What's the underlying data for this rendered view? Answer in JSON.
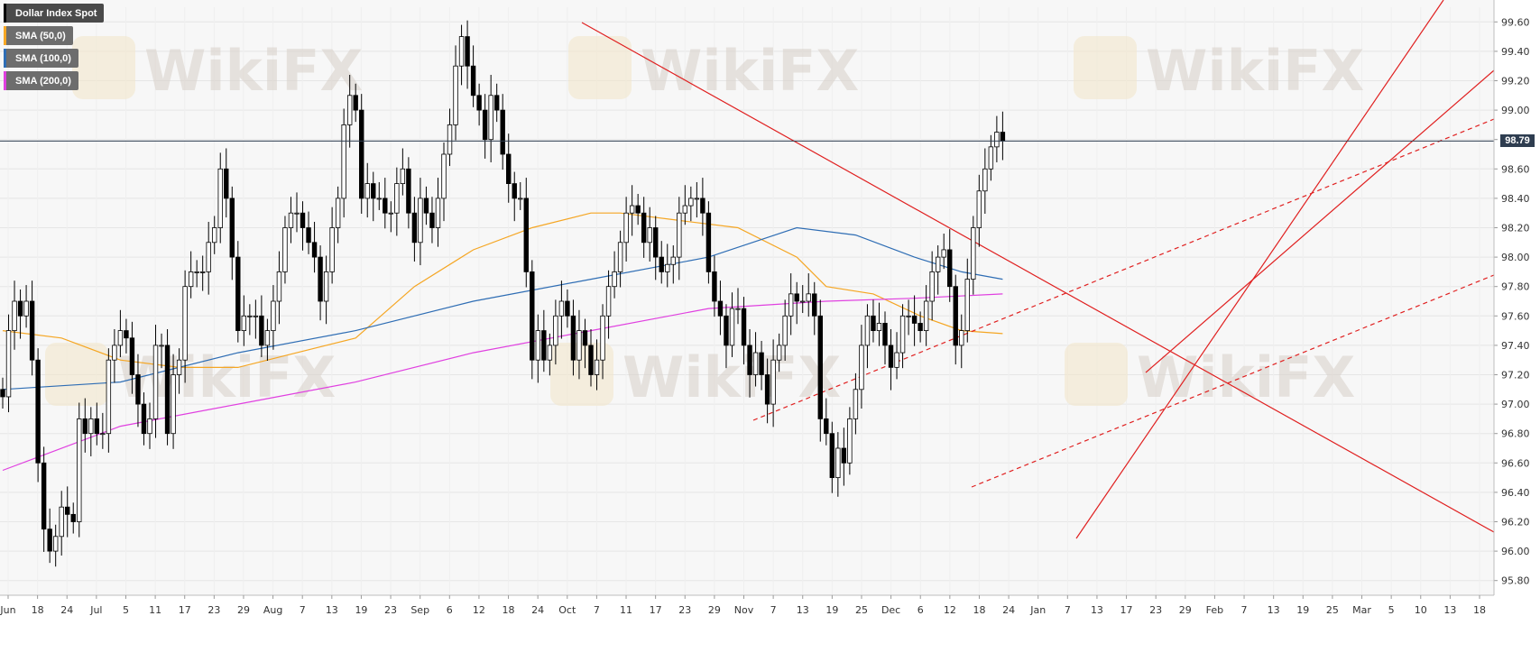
{
  "legend": {
    "items": [
      {
        "label": "Dollar Index Spot",
        "color": "#000000"
      },
      {
        "label": "SMA (50,0)",
        "color": "#f5a623"
      },
      {
        "label": "SMA (100,0)",
        "color": "#2e6db4"
      },
      {
        "label": "SMA (200,0)",
        "color": "#e040e0"
      }
    ]
  },
  "last_price_label": "98.79",
  "watermark_text": "WikiFX",
  "colors": {
    "background": "#f7f7f7",
    "grid": "#e6e6e6",
    "candle_down": "#000000",
    "candle_up": "#ffffff",
    "sma50": "#f5a623",
    "sma100": "#2e6db4",
    "sma200": "#e040e0",
    "trendline": "#e02020",
    "price_line": "#2e3d50"
  },
  "chart_data": {
    "type": "candlestick",
    "title": "Dollar Index Spot",
    "ylim": [
      95.7,
      99.7
    ],
    "y_ticks": [
      95.8,
      96.0,
      96.2,
      96.4,
      96.6,
      96.8,
      97.0,
      97.2,
      97.4,
      97.6,
      97.8,
      98.0,
      98.2,
      98.4,
      98.6,
      98.8,
      99.0,
      99.2,
      99.4,
      99.6
    ],
    "x_tick_labels": [
      "Jun",
      "18",
      "24",
      "Jul",
      "5",
      "11",
      "17",
      "23",
      "29",
      "Aug",
      "7",
      "13",
      "19",
      "23",
      "Sep",
      "6",
      "12",
      "18",
      "24",
      "Oct",
      "7",
      "11",
      "17",
      "23",
      "29",
      "Nov",
      "7",
      "13",
      "19",
      "25",
      "Dec",
      "6",
      "12",
      "18",
      "24",
      "Jan",
      "7",
      "13",
      "17",
      "23",
      "29",
      "Feb",
      "7",
      "13",
      "19",
      "25",
      "Mar",
      "5",
      "10",
      "13",
      "18"
    ],
    "closes": [
      97.05,
      97.5,
      97.7,
      97.6,
      97.7,
      97.3,
      96.6,
      96.15,
      96.0,
      96.1,
      96.3,
      96.25,
      96.2,
      96.9,
      96.8,
      96.9,
      96.8,
      96.8,
      97.3,
      97.4,
      97.5,
      97.45,
      97.2,
      97.0,
      96.8,
      96.9,
      97.4,
      97.4,
      96.8,
      97.2,
      97.3,
      97.8,
      97.9,
      97.9,
      97.9,
      98.1,
      98.2,
      98.6,
      98.4,
      98.0,
      97.5,
      97.6,
      97.6,
      97.6,
      97.4,
      97.5,
      97.7,
      97.9,
      98.2,
      98.3,
      98.3,
      98.2,
      98.1,
      98.0,
      97.7,
      97.9,
      98.2,
      98.4,
      98.9,
      99.1,
      99.0,
      98.4,
      98.5,
      98.4,
      98.4,
      98.3,
      98.3,
      98.5,
      98.6,
      98.3,
      98.1,
      98.4,
      98.3,
      98.2,
      98.4,
      98.7,
      98.9,
      99.3,
      99.5,
      99.3,
      99.1,
      99.0,
      98.8,
      99.1,
      99.0,
      98.7,
      98.5,
      98.4,
      98.4,
      97.9,
      97.3,
      97.5,
      97.3,
      97.4,
      97.6,
      97.7,
      97.6,
      97.3,
      97.5,
      97.4,
      97.2,
      97.3,
      97.6,
      97.8,
      97.9,
      98.1,
      98.3,
      98.35,
      98.3,
      98.1,
      98.2,
      98.0,
      97.9,
      97.95,
      98.0,
      98.3,
      98.35,
      98.4,
      98.4,
      98.3,
      97.9,
      97.7,
      97.6,
      97.4,
      97.65,
      97.65,
      97.4,
      97.2,
      97.35,
      97.2,
      97.0,
      97.3,
      97.4,
      97.6,
      97.75,
      97.7,
      97.7,
      97.75,
      97.6,
      96.9,
      96.8,
      96.5,
      96.7,
      96.6,
      96.9,
      97.1,
      97.4,
      97.6,
      97.5,
      97.55,
      97.4,
      97.25,
      97.35,
      97.6,
      97.6,
      97.55,
      97.5,
      97.7,
      97.9,
      98.0,
      98.05,
      97.8,
      97.4,
      97.5,
      97.85,
      98.2,
      98.45,
      98.6,
      98.75,
      98.85,
      98.79
    ],
    "series": [
      {
        "name": "SMA (50,0)",
        "values": [
          [
            0,
            97.5
          ],
          [
            10,
            97.45
          ],
          [
            20,
            97.3
          ],
          [
            30,
            97.25
          ],
          [
            40,
            97.25
          ],
          [
            50,
            97.35
          ],
          [
            60,
            97.45
          ],
          [
            70,
            97.8
          ],
          [
            80,
            98.05
          ],
          [
            90,
            98.2
          ],
          [
            100,
            98.3
          ],
          [
            105,
            98.3
          ],
          [
            115,
            98.25
          ],
          [
            125,
            98.2
          ],
          [
            135,
            98.0
          ],
          [
            140,
            97.8
          ],
          [
            148,
            97.75
          ],
          [
            156,
            97.6
          ],
          [
            163,
            97.5
          ],
          [
            170,
            97.48
          ]
        ]
      },
      {
        "name": "SMA (100,0)",
        "values": [
          [
            0,
            97.1
          ],
          [
            20,
            97.15
          ],
          [
            40,
            97.35
          ],
          [
            60,
            97.5
          ],
          [
            80,
            97.7
          ],
          [
            100,
            97.85
          ],
          [
            120,
            98.0
          ],
          [
            135,
            98.2
          ],
          [
            145,
            98.15
          ],
          [
            155,
            98.0
          ],
          [
            163,
            97.9
          ],
          [
            170,
            97.85
          ]
        ]
      },
      {
        "name": "SMA (200,0)",
        "values": [
          [
            0,
            96.55
          ],
          [
            20,
            96.85
          ],
          [
            40,
            97.0
          ],
          [
            60,
            97.15
          ],
          [
            80,
            97.35
          ],
          [
            100,
            97.5
          ],
          [
            120,
            97.65
          ],
          [
            140,
            97.7
          ],
          [
            155,
            97.72
          ],
          [
            170,
            97.75
          ]
        ]
      }
    ]
  }
}
